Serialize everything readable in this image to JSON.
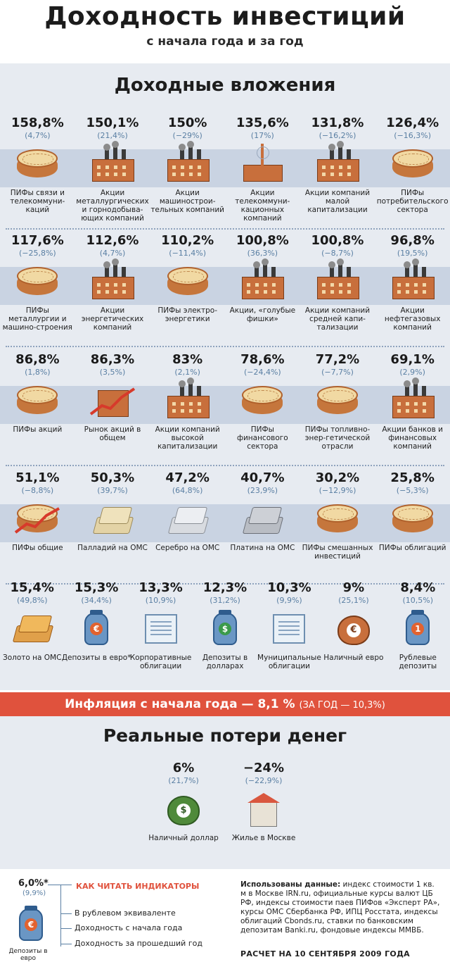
{
  "header": {
    "title": "Доходность инвестиций",
    "subtitle": "с начала года и за год"
  },
  "income": {
    "title": "Доходные вложения",
    "rows": [
      [
        {
          "pct": "158,8%",
          "prev": "(4,7%)",
          "label": "ПИФы связи и телекоммуни-каций",
          "icon": "pie-icon"
        },
        {
          "pct": "150,1%",
          "prev": "(21,4%)",
          "label": "Акции металлургических и горнодобыва-ющих компаний",
          "icon": "factory-icon"
        },
        {
          "pct": "150%",
          "prev": "(−29%)",
          "label": "Акции машинострои-тельных компаний",
          "icon": "factory-icon"
        },
        {
          "pct": "135,6%",
          "prev": "(17%)",
          "label": "Акции телекоммуни-кационных компаний",
          "icon": "tower-icon"
        },
        {
          "pct": "131,8%",
          "prev": "(−16,2%)",
          "label": "Акции компаний малой капитализации",
          "icon": "factory-icon"
        },
        {
          "pct": "126,4%",
          "prev": "(−16,3%)",
          "label": "ПИФы потребительского сектора",
          "icon": "pie-icon"
        }
      ],
      [
        {
          "pct": "117,6%",
          "prev": "(−25,8%)",
          "label": "ПИФы металлургии и машино-строения",
          "icon": "pie-icon"
        },
        {
          "pct": "112,6%",
          "prev": "(4,7%)",
          "label": "Акции энергетических компаний",
          "icon": "factory-icon"
        },
        {
          "pct": "110,2%",
          "prev": "(−11,4%)",
          "label": "ПИФы электро-энергетики",
          "icon": "pie-icon"
        },
        {
          "pct": "100,8%",
          "prev": "(36,3%)",
          "label": "Акции, «голубые фишки»",
          "icon": "factory-icon"
        },
        {
          "pct": "100,8%",
          "prev": "(−8,7%)",
          "label": "Акции компаний средней капи-тализации",
          "icon": "factory-icon"
        },
        {
          "pct": "96,8%",
          "prev": "(19,5%)",
          "label": "Акции нефтегазовых компаний",
          "icon": "factory-icon"
        }
      ],
      [
        {
          "pct": "86,8%",
          "prev": "(1,8%)",
          "label": "ПИФы акций",
          "icon": "pie-icon"
        },
        {
          "pct": "86,3%",
          "prev": "(3,5%)",
          "label": "Рынок акций в общем",
          "icon": "market-chart-icon"
        },
        {
          "pct": "83%",
          "prev": "(2,1%)",
          "label": "Акции компаний высокой капитализации",
          "icon": "factory-icon"
        },
        {
          "pct": "78,6%",
          "prev": "(−24,4%)",
          "label": "ПИФы финансового сектора",
          "icon": "pie-icon"
        },
        {
          "pct": "77,2%",
          "prev": "(−7,7%)",
          "label": "ПИФы топливно-энер-гетической отрасли",
          "icon": "pie-icon"
        },
        {
          "pct": "69,1%",
          "prev": "(2,9%)",
          "label": "Акции банков и финансовых компаний",
          "icon": "factory-icon"
        }
      ],
      [
        {
          "pct": "51,1%",
          "prev": "(−8,8%)",
          "label": "ПИФы общие",
          "icon": "pie-chart-icon"
        },
        {
          "pct": "50,3%",
          "prev": "(39,7%)",
          "label": "Палладий на ОМС",
          "icon": "palladium-bars-icon"
        },
        {
          "pct": "47,2%",
          "prev": "(64,8%)",
          "label": "Серебро на ОМС",
          "icon": "silver-bars-icon"
        },
        {
          "pct": "40,7%",
          "prev": "(23,9%)",
          "label": "Платина на ОМС",
          "icon": "platinum-bars-icon"
        },
        {
          "pct": "30,2%",
          "prev": "(−12,9%)",
          "label": "ПИФы смешанных инвестиций",
          "icon": "pie-icon"
        },
        {
          "pct": "25,8%",
          "prev": "(−5,3%)",
          "label": "ПИФы облигаций",
          "icon": "pie-icon"
        }
      ],
      [
        {
          "pct": "15,4%",
          "prev": "(49,8%)",
          "label": "Золото на ОМС",
          "icon": "gold-bars-icon"
        },
        {
          "pct": "15,3%",
          "prev": "(34,4%)",
          "label": "Депозиты в евро*",
          "icon": "euro-jar-icon",
          "symbol": "€"
        },
        {
          "pct": "13,3%",
          "prev": "(10,9%)",
          "label": "Корпоративные облигации",
          "icon": "certificate-icon"
        },
        {
          "pct": "12,3%",
          "prev": "(31,2%)",
          "label": "Депозиты в долларах",
          "icon": "dollar-jar-icon",
          "symbol": "$"
        },
        {
          "pct": "10,3%",
          "prev": "(9,9%)",
          "label": "Муниципальные облигации",
          "icon": "certificate-icon"
        },
        {
          "pct": "9%",
          "prev": "(25,1%)",
          "label": "Наличный евро",
          "icon": "euro-bag-icon",
          "symbol": "€"
        },
        {
          "pct": "8,4%",
          "prev": "(10,5%)",
          "label": "Рублевые депозиты",
          "icon": "ruble-jar-icon",
          "symbol": "1"
        }
      ]
    ]
  },
  "inflation": {
    "main": "Инфляция с начала года — 8,1 %",
    "sub": "(ЗА ГОД — 10,3%)"
  },
  "losses": {
    "title": "Реальные потери денег",
    "items": [
      {
        "pct": "6%",
        "prev": "(21,7%)",
        "label": "Наличный доллар",
        "icon": "dollar-bag-icon",
        "symbol": "$"
      },
      {
        "pct": "−24%",
        "prev": "(−22,9%)",
        "label": "Жилье в Москве",
        "icon": "house-icon"
      }
    ]
  },
  "legend": {
    "title": "КАК ЧИТАТЬ ИНДИКАТОРЫ",
    "example_pct": "6,0%*",
    "example_prev": "(9,9%)",
    "example_label": "Депозиты в евро",
    "items": [
      "В рублевом эквиваленте",
      "Доходность с начала года",
      "Доходность за прошедший год"
    ]
  },
  "sources": {
    "heading": "Использованы данные:",
    "text": " индекс стоимости 1 кв. м в Москве IRN.ru, официальные курсы валют ЦБ РФ, индексы стоимости паев ПИФов «Эксперт РА», курсы ОМС Сбербанка РФ, ИПЦ Росстата, индексы облигаций Cbonds.ru, ставки по банковским депозитам Banki.ru, фондовые индексы ММВБ.",
    "date": "РАСЧЕТ НА 10 СЕНТЯБРЯ 2009 ГОДА"
  },
  "colors": {
    "accent": "#e0523d",
    "band": "#e7ebf1",
    "stripe": "#c9d3e2",
    "prev": "#5a7fa3"
  }
}
